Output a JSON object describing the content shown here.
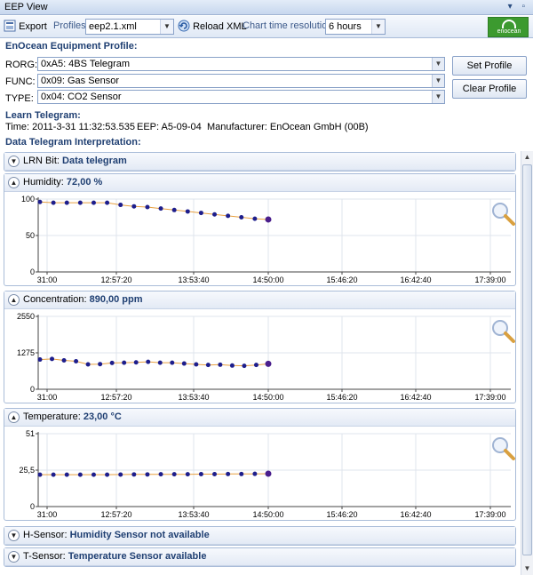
{
  "window": {
    "title": "EEP View",
    "controls": "▾ ▫"
  },
  "toolbar": {
    "export_label": "Export",
    "profiles_label": "Profiles:",
    "profiles_value": "eep2.1.xml",
    "reload_label": "Reload XML",
    "resolution_label": "Chart time resolution:",
    "resolution_value": "6 hours",
    "logo_text": "enocean"
  },
  "profile": {
    "heading": "EnOcean Equipment Profile:",
    "rorg_label": "RORG:",
    "rorg_value": "0xA5: 4BS Telegram",
    "func_label": "FUNC:",
    "func_value": "0x09: Gas Sensor",
    "type_label": "TYPE:",
    "type_value": "0x04: CO2 Sensor",
    "set_button": "Set Profile",
    "clear_button": "Clear Profile"
  },
  "learn": {
    "heading": "Learn Telegram:",
    "time": "Time: 2011-3-31 11:32:53.535",
    "eep": "EEP: A5-09-04",
    "manufacturer": "Manufacturer: EnOcean GmbH (00B)"
  },
  "interpretation": {
    "heading": "Data Telegram Interpretation:"
  },
  "lrn": {
    "label": "LRN Bit:",
    "value": "Data telegram"
  },
  "hsensor": {
    "label": "H-Sensor:",
    "value": "Humidity Sensor not available"
  },
  "tsensor": {
    "label": "T-Sensor:",
    "value": "Temperature Sensor available"
  },
  "colors": {
    "accent": "#1f3f72",
    "point": "#1e1e8c",
    "line": "#e8a040"
  },
  "chart_data": [
    {
      "type": "line",
      "label": "Humidity:",
      "value_text": "72,00 %",
      "x_ticks": [
        "31:00",
        "12:57:20",
        "13:53:40",
        "14:50:00",
        "15:46:20",
        "16:42:40",
        "17:39:00"
      ],
      "y_ticks": [
        "100",
        "50",
        "0"
      ],
      "ylim": [
        0,
        100
      ],
      "points": [
        96,
        95,
        95,
        95,
        95,
        95,
        92,
        90,
        89,
        87,
        85,
        83,
        81,
        79,
        77,
        75,
        73,
        72
      ],
      "grid": true
    },
    {
      "type": "line",
      "label": "Concentration:",
      "value_text": "890,00 ppm",
      "x_ticks": [
        "31:00",
        "12:57:20",
        "13:53:40",
        "14:50:00",
        "15:46:20",
        "16:42:40",
        "17:39:00"
      ],
      "y_ticks": [
        "2550",
        "1275",
        "0"
      ],
      "ylim": [
        0,
        2550
      ],
      "points": [
        1040,
        1060,
        1010,
        980,
        870,
        880,
        920,
        930,
        940,
        960,
        930,
        930,
        900,
        870,
        850,
        860,
        830,
        820,
        850,
        890
      ],
      "grid": true
    },
    {
      "type": "line",
      "label": "Temperature:",
      "value_text": "23,00 °C",
      "x_ticks": [
        "31:00",
        "12:57:20",
        "13:53:40",
        "14:50:00",
        "15:46:20",
        "16:42:40",
        "17:39:00"
      ],
      "y_ticks": [
        "51",
        "25,5",
        "0"
      ],
      "ylim": [
        0,
        51
      ],
      "points": [
        22.3,
        22.3,
        22.3,
        22.3,
        22.3,
        22.3,
        22.4,
        22.5,
        22.5,
        22.6,
        22.6,
        22.6,
        22.7,
        22.7,
        22.8,
        22.8,
        22.9,
        23.0
      ],
      "grid": true
    }
  ]
}
